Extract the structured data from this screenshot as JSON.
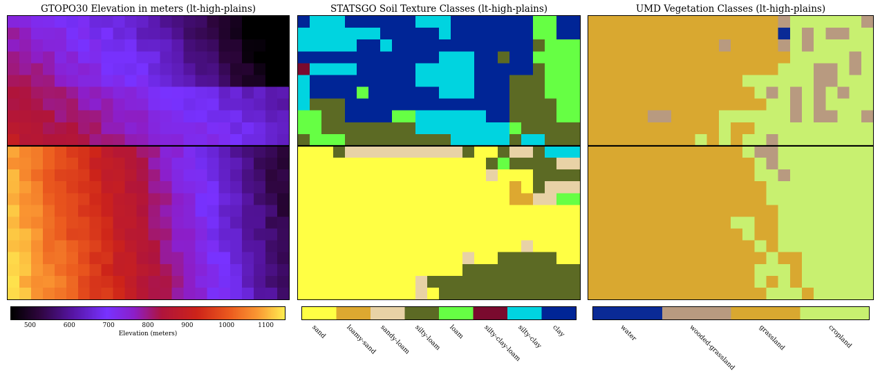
{
  "panels": [
    {
      "id": "elev",
      "title": "GTOPO30 Elevation in meters (lt-high-plains)"
    },
    {
      "id": "soil",
      "title": "STATSGO Soil Texture Classes (lt-high-plains)"
    },
    {
      "id": "veg",
      "title": "UMD Vegetation Classes (lt-high-plains)"
    }
  ],
  "chart_data": [
    {
      "type": "heatmap",
      "title": "GTOPO30 Elevation in meters (lt-high-plains)",
      "colorbar_label": "Elevation (meters)",
      "colormap": "gnuplot-like (black-purple-red-orange-yellow)",
      "vmin": 450,
      "vmax": 1150,
      "ticks": [
        500,
        600,
        700,
        800,
        900,
        1000,
        1100
      ],
      "grid_shape": [
        24,
        24
      ],
      "horizontal_divider": true
    },
    {
      "type": "heatmap",
      "title": "STATSGO Soil Texture Classes (lt-high-plains)",
      "categories": [
        "sand",
        "loamy-sand",
        "sandy-loam",
        "silty-loam",
        "loam",
        "silty-clay-loam",
        "silty-clay",
        "clay"
      ],
      "colors": [
        "#ffff44",
        "#dda830",
        "#e8d2a6",
        "#5c6a24",
        "#66ff44",
        "#7a0a2e",
        "#00d4e0",
        "#002596"
      ],
      "grid_shape": [
        24,
        24
      ],
      "horizontal_divider": true
    },
    {
      "type": "heatmap",
      "title": "UMD Vegetation Classes (lt-high-plains)",
      "categories": [
        "water",
        "wooded-grassland",
        "grassland",
        "cropland"
      ],
      "colors": [
        "#0a2a96",
        "#b89a80",
        "#d9a830",
        "#c8f070"
      ],
      "grid_shape": [
        24,
        24
      ],
      "horizontal_divider": true
    }
  ]
}
